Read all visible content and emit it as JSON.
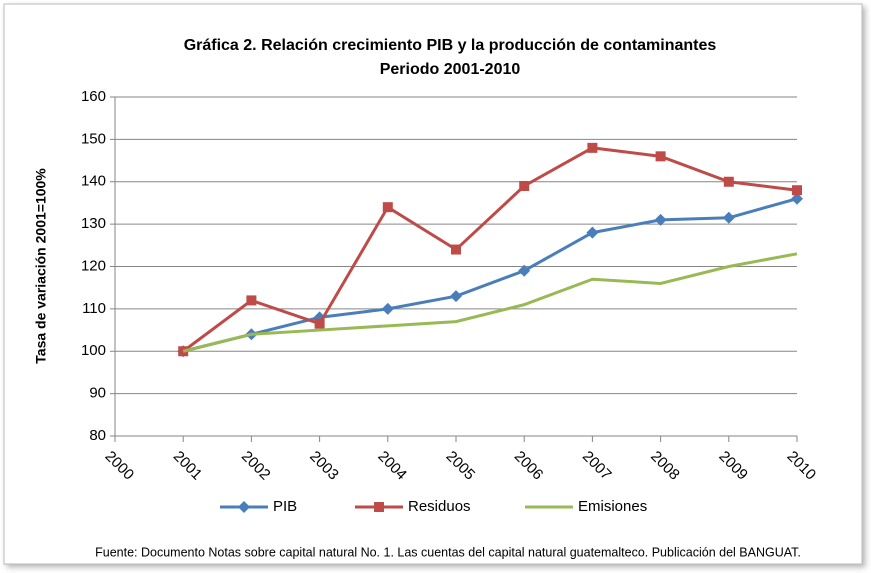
{
  "chart_data": {
    "type": "line",
    "title": "Gráfica 2.  Relación crecimiento PIB y la producción de contaminantes",
    "subtitle": "Periodo 2001-2010",
    "y_label": "Tasa de variación  2001=100%",
    "source": "Fuente: Documento Notas sobre capital natural No. 1. Las cuentas del capital  natural  guatemalteco.  Publicación del BANGUAT.",
    "x": [
      2001,
      2002,
      2003,
      2004,
      2005,
      2006,
      2007,
      2008,
      2009,
      2010
    ],
    "xlim": [
      2000,
      2010
    ],
    "xticks": [
      2000,
      2001,
      2002,
      2003,
      2004,
      2005,
      2006,
      2007,
      2008,
      2009,
      2010
    ],
    "ylim": [
      80,
      160
    ],
    "yticks": [
      80,
      90,
      100,
      110,
      120,
      130,
      140,
      150,
      160
    ],
    "grid": true,
    "legend": "bottom",
    "series": [
      {
        "name": "PIB",
        "color": "#4a7ebb",
        "marker": "diamond",
        "values": [
          100,
          104,
          108,
          110,
          113,
          119,
          128,
          131,
          131.5,
          136
        ]
      },
      {
        "name": "Residuos",
        "color": "#be4b48",
        "marker": "square",
        "values": [
          100,
          112,
          106.5,
          134,
          124,
          139,
          148,
          146,
          140,
          138
        ]
      },
      {
        "name": "Emisiones",
        "color": "#98b954",
        "values": [
          100,
          104,
          105,
          106,
          107,
          111,
          117,
          116,
          120,
          123
        ]
      }
    ]
  }
}
